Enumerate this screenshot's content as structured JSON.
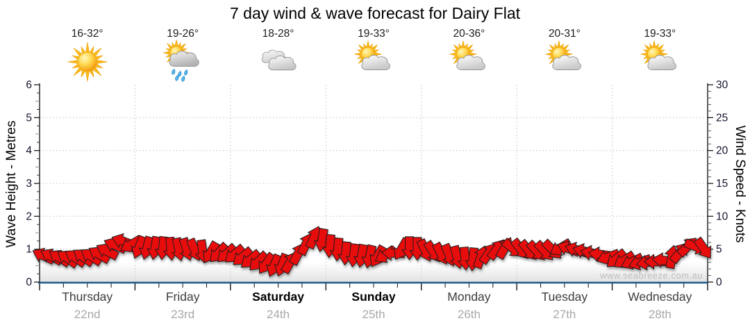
{
  "page": {
    "title_label": "7 day wind & wave forecast for Dairy Flat",
    "watermark": "www.seabreeze.com.au"
  },
  "days": [
    {
      "name": "Thursday",
      "date": "22nd",
      "temp": "16-32°",
      "icon": "sunny",
      "weekend": false
    },
    {
      "name": "Friday",
      "date": "23rd",
      "temp": "19-26°",
      "icon": "sun-showers",
      "weekend": false
    },
    {
      "name": "Saturday",
      "date": "24th",
      "temp": "18-28°",
      "icon": "cloudy",
      "weekend": true
    },
    {
      "name": "Sunday",
      "date": "25th",
      "temp": "19-33°",
      "icon": "sun-cloud",
      "weekend": true
    },
    {
      "name": "Monday",
      "date": "26th",
      "temp": "20-36°",
      "icon": "sun-cloud",
      "weekend": false
    },
    {
      "name": "Tuesday",
      "date": "27th",
      "temp": "20-31°",
      "icon": "sun-cloud",
      "weekend": false
    },
    {
      "name": "Wednesday",
      "date": "28th",
      "temp": "19-33°",
      "icon": "sun-cloud",
      "weekend": false
    }
  ],
  "colors": {
    "arrow": "#e80d0d",
    "arrow_outline": "#1c1c1c",
    "bottom_axis": "#1d5b86",
    "axis": "#1a1a1a",
    "grid": "#c9c9c9",
    "tick_label": "#14142e",
    "minor_tick": "#8f8f8f"
  },
  "chart_data": {
    "type": "scatter",
    "title": "7 day wind & wave forecast for Dairy Flat",
    "x_axis": {
      "label": "",
      "range_hours": [
        0,
        168
      ],
      "days": 7,
      "day_labels": [
        "Thursday 22nd",
        "Friday 23rd",
        "Saturday 24th",
        "Sunday 25th",
        "Monday 26th",
        "Tuesday 27th",
        "Wednesday 28th"
      ],
      "minor_ticks_per_day": 4,
      "day_gridlines": "dotted"
    },
    "y_axis_left": {
      "label": "Wave Height - Metres",
      "range": [
        0,
        6
      ],
      "ticks": [
        0,
        1,
        2,
        3,
        4,
        5,
        6
      ],
      "minor_step": 0.25
    },
    "y_axis_right": {
      "label": "Wind Speed - Knots",
      "range": [
        0,
        30
      ],
      "ticks": [
        0,
        5,
        10,
        15,
        20,
        25,
        30
      ],
      "minor_step": 1
    },
    "grid": "dotted horizontal at 1-5 m, vertical at day boundaries",
    "legend": "none",
    "series": [
      {
        "name": "Wind forecast arrows",
        "marker": "arrow",
        "color": "#e80d0d",
        "point_format": "[hour_of_week, wind_speed_knots, direction_deg_screen (0=right,90=down)]",
        "points_hkd": [
          [
            1,
            4.0,
            205
          ],
          [
            3,
            3.9,
            208
          ],
          [
            5,
            3.7,
            212
          ],
          [
            7,
            3.6,
            215
          ],
          [
            9,
            3.7,
            214
          ],
          [
            11,
            3.8,
            215
          ],
          [
            13,
            3.9,
            213
          ],
          [
            15,
            4.2,
            211
          ],
          [
            17,
            4.7,
            208
          ],
          [
            19,
            5.6,
            203
          ],
          [
            21,
            6.2,
            200
          ],
          [
            23,
            5.7,
            150
          ],
          [
            25,
            5.3,
            112
          ],
          [
            27,
            5.2,
            105
          ],
          [
            29,
            5.2,
            100
          ],
          [
            31,
            5.2,
            96
          ],
          [
            33,
            5.1,
            85
          ],
          [
            35,
            5.0,
            78
          ],
          [
            37,
            5.0,
            72
          ],
          [
            39,
            4.9,
            67
          ],
          [
            41,
            4.7,
            82
          ],
          [
            43,
            4.5,
            120
          ],
          [
            45,
            4.4,
            133
          ],
          [
            47,
            4.3,
            138
          ],
          [
            49,
            4.2,
            140
          ],
          [
            51,
            3.8,
            140
          ],
          [
            53,
            3.4,
            140
          ],
          [
            55,
            3.1,
            135
          ],
          [
            57,
            2.8,
            125
          ],
          [
            59,
            2.5,
            113
          ],
          [
            61,
            2.6,
            110
          ],
          [
            63,
            3.0,
            300
          ],
          [
            65,
            4.3,
            298
          ],
          [
            67,
            5.8,
            296
          ],
          [
            69,
            6.8,
            294
          ],
          [
            71,
            6.4,
            100
          ],
          [
            73,
            5.5,
            95
          ],
          [
            75,
            5.0,
            95
          ],
          [
            77,
            4.4,
            95
          ],
          [
            79,
            4.1,
            97
          ],
          [
            81,
            4.0,
            100
          ],
          [
            83,
            3.9,
            103
          ],
          [
            85,
            3.9,
            120
          ],
          [
            87,
            4.1,
            150
          ],
          [
            89,
            4.4,
            183
          ],
          [
            91,
            5.0,
            120
          ],
          [
            93,
            5.2,
            90
          ],
          [
            95,
            5.1,
            90
          ],
          [
            97,
            4.8,
            65
          ],
          [
            99,
            4.6,
            57
          ],
          [
            101,
            4.3,
            62
          ],
          [
            103,
            4.1,
            68
          ],
          [
            105,
            3.8,
            75
          ],
          [
            107,
            3.6,
            85
          ],
          [
            109,
            3.5,
            95
          ],
          [
            111,
            3.8,
            290
          ],
          [
            113,
            4.4,
            305
          ],
          [
            115,
            5.0,
            307
          ],
          [
            117,
            5.2,
            300
          ],
          [
            119,
            5.1,
            40
          ],
          [
            121,
            5.0,
            52
          ],
          [
            123,
            4.8,
            50
          ],
          [
            125,
            4.7,
            48
          ],
          [
            127,
            4.7,
            47
          ],
          [
            129,
            4.9,
            45
          ],
          [
            131,
            5.2,
            150
          ],
          [
            133,
            5.1,
            200
          ],
          [
            135,
            4.9,
            197
          ],
          [
            137,
            4.7,
            194
          ],
          [
            139,
            4.4,
            191
          ],
          [
            141,
            4.2,
            188
          ],
          [
            143,
            3.8,
            160
          ],
          [
            145,
            3.5,
            140
          ],
          [
            147,
            3.3,
            148
          ],
          [
            149,
            3.1,
            155
          ],
          [
            151,
            3.0,
            160
          ],
          [
            153,
            3.0,
            170
          ],
          [
            155,
            3.1,
            180
          ],
          [
            157,
            3.3,
            188
          ],
          [
            159,
            3.8,
            280
          ],
          [
            161,
            4.5,
            308
          ],
          [
            163,
            5.4,
            315
          ],
          [
            165,
            5.4,
            20
          ],
          [
            167,
            5.1,
            55
          ]
        ]
      }
    ]
  }
}
